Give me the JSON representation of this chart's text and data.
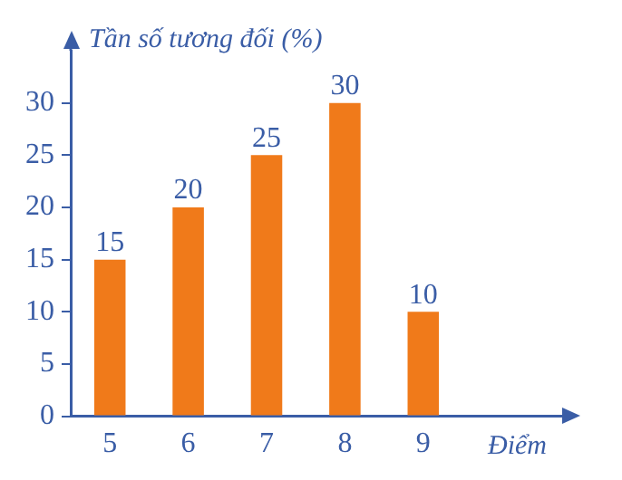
{
  "chart_data": {
    "type": "bar",
    "ylabel": "Tần số tương đối (%)",
    "xlabel": "Điểm",
    "categories": [
      "5",
      "6",
      "7",
      "8",
      "9"
    ],
    "values": [
      15,
      20,
      25,
      30,
      10
    ],
    "color": "#f07a1a",
    "ylim": [
      0,
      35
    ],
    "yticks": [
      0,
      5,
      10,
      15,
      20,
      25,
      30
    ],
    "grid": false,
    "legend": false,
    "data_labels": true
  }
}
